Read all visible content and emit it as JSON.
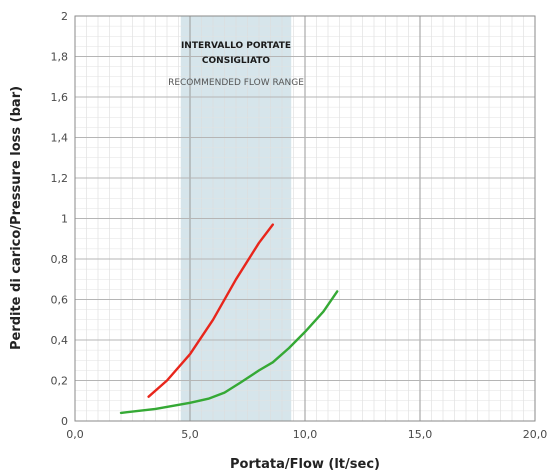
{
  "chart_data": {
    "type": "line",
    "title": "",
    "xlabel": "Portata/Flow (lt/sec)",
    "ylabel": "Perdite di carico/Pressure loss (bar)",
    "xlim": [
      0,
      20
    ],
    "ylim": [
      0,
      2
    ],
    "x_ticks": [
      "0,0",
      "5,0",
      "10,0",
      "15,0",
      "20,0"
    ],
    "y_ticks": [
      "0",
      "0,2",
      "0,4",
      "0,6",
      "0,8",
      "1",
      "1,2",
      "1,4",
      "1,6",
      "1,8",
      "2"
    ],
    "grid": true,
    "recommended_range": {
      "x_start": 4.6,
      "x_end": 9.4,
      "title_line1": "INTERVALLO PORTATE",
      "title_line2": "CONSIGLIATO",
      "subtitle": "RECOMMENDED FLOW RANGE",
      "color": "#cfe0e8"
    },
    "series": [
      {
        "color": "#e8261c",
        "points": [
          [
            3.2,
            0.12
          ],
          [
            4.0,
            0.2
          ],
          [
            5.0,
            0.33
          ],
          [
            6.0,
            0.5
          ],
          [
            7.0,
            0.7
          ],
          [
            8.0,
            0.88
          ],
          [
            8.6,
            0.97
          ]
        ]
      },
      {
        "color": "#35a935",
        "points": [
          [
            2.0,
            0.04
          ],
          [
            3.5,
            0.06
          ],
          [
            5.0,
            0.09
          ],
          [
            5.8,
            0.11
          ],
          [
            6.5,
            0.14
          ],
          [
            7.2,
            0.19
          ],
          [
            8.0,
            0.25
          ],
          [
            8.6,
            0.29
          ],
          [
            9.3,
            0.36
          ],
          [
            10.0,
            0.44
          ],
          [
            10.8,
            0.54
          ],
          [
            11.4,
            0.64
          ]
        ]
      }
    ]
  }
}
